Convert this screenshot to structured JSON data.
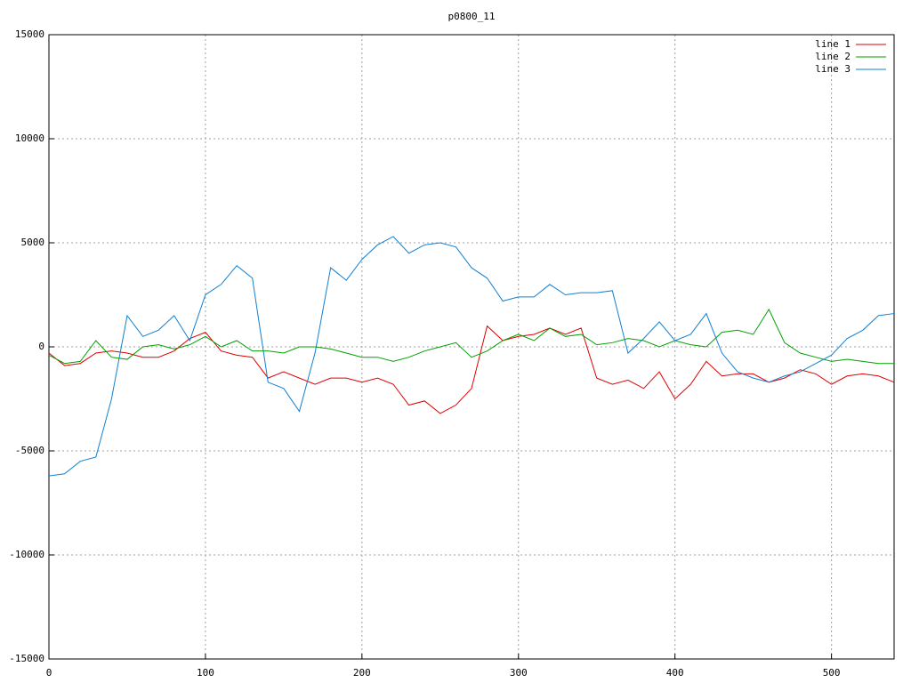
{
  "chart_data": {
    "type": "line",
    "title": "p0800_11",
    "x": [
      0,
      10,
      20,
      30,
      40,
      50,
      60,
      70,
      80,
      90,
      100,
      110,
      120,
      130,
      140,
      150,
      160,
      170,
      180,
      190,
      200,
      210,
      220,
      230,
      240,
      250,
      260,
      270,
      280,
      290,
      300,
      310,
      320,
      330,
      340,
      350,
      360,
      370,
      380,
      390,
      400,
      410,
      420,
      430,
      440,
      450,
      460,
      470,
      480,
      490,
      500,
      510,
      520,
      530,
      540
    ],
    "series": [
      {
        "name": "line 1",
        "color": "#e00000",
        "values": [
          -300,
          -900,
          -800,
          -300,
          -200,
          -300,
          -500,
          -500,
          -200,
          400,
          700,
          -200,
          -400,
          -500,
          -1500,
          -1200,
          -1500,
          -1800,
          -1500,
          -1500,
          -1700,
          -1500,
          -1800,
          -2800,
          -2600,
          -3200,
          -2800,
          -2000,
          1000,
          300,
          500,
          600,
          900,
          600,
          900,
          -1500,
          -1800,
          -1600,
          -2000,
          -1200,
          -2500,
          -1800,
          -700,
          -1400,
          -1300,
          -1300,
          -1700,
          -1500,
          -1100,
          -1300,
          -1800,
          -1400,
          -1300,
          -1400,
          -1700
        ]
      },
      {
        "name": "line 2",
        "color": "#00a000",
        "values": [
          -400,
          -800,
          -700,
          300,
          -500,
          -600,
          0,
          100,
          -100,
          100,
          500,
          0,
          300,
          -200,
          -200,
          -300,
          0,
          0,
          -100,
          -300,
          -500,
          -500,
          -700,
          -500,
          -200,
          0,
          200,
          -500,
          -200,
          300,
          600,
          300,
          900,
          500,
          600,
          100,
          200,
          400,
          300,
          0,
          300,
          100,
          0,
          700,
          800,
          600,
          1800,
          200,
          -300,
          -500,
          -700,
          -600,
          -700,
          -800,
          -800
        ]
      },
      {
        "name": "line 3",
        "color": "#1080d0",
        "values": [
          -6200,
          -6100,
          -5500,
          -5300,
          -2500,
          1500,
          500,
          800,
          1500,
          300,
          2500,
          3000,
          3900,
          3300,
          -1700,
          -2000,
          -3100,
          -300,
          3800,
          3200,
          4200,
          4900,
          5300,
          4500,
          4900,
          5000,
          4800,
          3800,
          3300,
          2200,
          2400,
          2400,
          3000,
          2500,
          2600,
          2600,
          2700,
          -300,
          400,
          1200,
          300,
          600,
          1600,
          -300,
          -1200,
          -1500,
          -1700,
          -1400,
          -1200,
          -800,
          -400,
          400,
          800,
          1500,
          1600
        ]
      }
    ],
    "xlim": [
      0,
      540
    ],
    "xticks": [
      0,
      100,
      200,
      300,
      400,
      500
    ],
    "ylim": [
      -15000,
      15000
    ],
    "yticks": [
      -15000,
      -10000,
      -5000,
      0,
      5000,
      10000,
      15000
    ],
    "grid": true,
    "legend": "top-right"
  }
}
